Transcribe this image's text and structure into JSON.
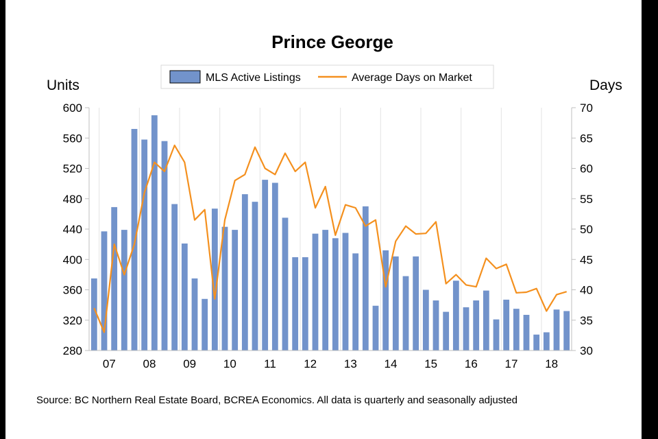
{
  "chart_data": {
    "type": "bar",
    "title": "Prince George",
    "y_left_label": "Units",
    "y_right_label": "Days",
    "y_left_range": [
      280,
      600
    ],
    "y_left_ticks": [
      "280",
      "320",
      "360",
      "400",
      "440",
      "480",
      "520",
      "560",
      "600"
    ],
    "y_right_range": [
      30,
      70
    ],
    "y_right_ticks": [
      "30",
      "35",
      "40",
      "45",
      "50",
      "55",
      "60",
      "65",
      "70"
    ],
    "x_tick_labels": [
      "07",
      "08",
      "09",
      "10",
      "11",
      "12",
      "13",
      "14",
      "15",
      "16",
      "17",
      "18"
    ],
    "grid": "vertical",
    "legend_position": "top-center",
    "periods": [
      "2006Q4",
      "2007Q1",
      "2007Q2",
      "2007Q3",
      "2007Q4",
      "2008Q1",
      "2008Q2",
      "2008Q3",
      "2008Q4",
      "2009Q1",
      "2009Q2",
      "2009Q3",
      "2009Q4",
      "2010Q1",
      "2010Q2",
      "2010Q3",
      "2010Q4",
      "2011Q1",
      "2011Q2",
      "2011Q3",
      "2011Q4",
      "2012Q1",
      "2012Q2",
      "2012Q3",
      "2012Q4",
      "2013Q1",
      "2013Q2",
      "2013Q3",
      "2013Q4",
      "2014Q1",
      "2014Q2",
      "2014Q3",
      "2014Q4",
      "2015Q1",
      "2015Q2",
      "2015Q3",
      "2015Q4",
      "2016Q1",
      "2016Q2",
      "2016Q3",
      "2016Q4",
      "2017Q1",
      "2017Q2",
      "2017Q3",
      "2017Q4",
      "2018Q1",
      "2018Q2",
      "2018Q3"
    ],
    "series": [
      {
        "name": "MLS Active Listings",
        "type": "bar",
        "axis": "left",
        "color": "#7293CB",
        "values": [
          375,
          437,
          469,
          439,
          572,
          558,
          590,
          556,
          473,
          421,
          375,
          348,
          467,
          443,
          439,
          486,
          476,
          505,
          501,
          455,
          403,
          403,
          434,
          439,
          428,
          435,
          408,
          470,
          339,
          412,
          404,
          378,
          404,
          360,
          346,
          331,
          372,
          337,
          346,
          359,
          321,
          347,
          335,
          327,
          301,
          304,
          334,
          332
        ]
      },
      {
        "name": "Average Days on Market",
        "type": "line",
        "axis": "right",
        "color": "#F4901E",
        "values": [
          37,
          33,
          47.5,
          42.5,
          47.5,
          56,
          61,
          59.5,
          63.8,
          61,
          51.5,
          53.2,
          38.5,
          51.5,
          58,
          59,
          63.5,
          60,
          59,
          62.5,
          59.5,
          61,
          53.5,
          57,
          49,
          54,
          53.5,
          50.5,
          51.5,
          40.5,
          48,
          50.5,
          49.2,
          49.3,
          51.2,
          41,
          42.5,
          40.8,
          40.5,
          45.2,
          43.5,
          44.2,
          39.5,
          39.6,
          40.2,
          36.5,
          39.2,
          39.7
        ]
      }
    ]
  },
  "source_note": "Source: BC Northern Real Estate Board, BCREA Economics. All data is quarterly and seasonally adjusted"
}
